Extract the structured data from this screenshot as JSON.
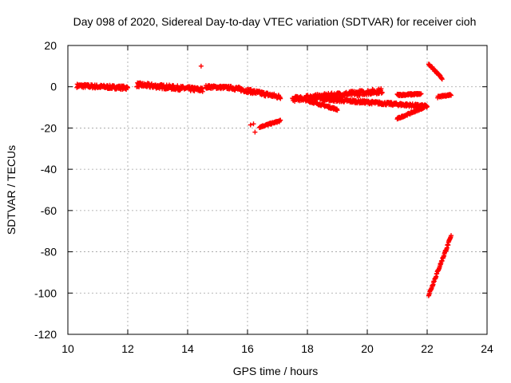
{
  "chart_data": {
    "type": "scatter",
    "title": "Day 098 of 2020, Sidereal Day-to-day VTEC variation (SDTVAR) for receiver cioh",
    "xlabel": "GPS time / hours",
    "ylabel": "SDTVAR / TECUs",
    "xlim": [
      10,
      24
    ],
    "ylim": [
      -120,
      20
    ],
    "xticks": [
      10,
      12,
      14,
      16,
      18,
      20,
      22,
      24
    ],
    "yticks": [
      20,
      0,
      -20,
      -40,
      -60,
      -80,
      -100,
      -120
    ],
    "xtick_labels": [
      "10",
      "12",
      "14",
      "16",
      "18",
      "20",
      "22",
      "24"
    ],
    "ytick_labels": [
      "20",
      "0",
      "-20",
      "-40",
      "-60",
      "-80",
      "-100",
      "-120"
    ],
    "grid": true,
    "marker": "+",
    "color": "#ff0000",
    "segments": [
      {
        "x_start": 10.3,
        "x_end": 12.0,
        "y_start": 0.5,
        "y_end": -0.5,
        "spread": 1.8
      },
      {
        "x_start": 12.3,
        "x_end": 14.5,
        "y_start": 1.0,
        "y_end": -1.5,
        "spread": 2.2
      },
      {
        "x_start": 14.6,
        "x_end": 15.5,
        "y_start": 0.0,
        "y_end": -0.5,
        "spread": 1.5
      },
      {
        "x_start": 15.5,
        "x_end": 17.1,
        "y_start": -0.5,
        "y_end": -5.0,
        "spread": 2.0
      },
      {
        "x_start": 16.4,
        "x_end": 17.1,
        "y_start": -19.5,
        "y_end": -16.5,
        "spread": 0.8
      },
      {
        "x_start": 17.5,
        "x_end": 20.5,
        "y_start": -6.0,
        "y_end": -2.0,
        "spread": 2.5
      },
      {
        "x_start": 17.6,
        "x_end": 19.0,
        "y_start": -5.0,
        "y_end": -11.0,
        "spread": 1.0
      },
      {
        "x_start": 18.5,
        "x_end": 22.0,
        "y_start": -6.0,
        "y_end": -9.5,
        "spread": 1.5
      },
      {
        "x_start": 21.0,
        "x_end": 21.8,
        "y_start": -4.0,
        "y_end": -3.5,
        "spread": 1.0
      },
      {
        "x_start": 21.0,
        "x_end": 21.9,
        "y_start": -15.5,
        "y_end": -10.0,
        "spread": 0.8
      },
      {
        "x_start": 22.05,
        "x_end": 22.5,
        "y_start": 11.0,
        "y_end": 4.0,
        "spread": 0.8
      },
      {
        "x_start": 22.35,
        "x_end": 22.8,
        "y_start": -5.0,
        "y_end": -3.8,
        "spread": 0.8
      },
      {
        "x_start": 22.05,
        "x_end": 22.8,
        "y_start": -101.0,
        "y_end": -72.5,
        "spread": 1.2
      }
    ],
    "points": [
      {
        "x": 14.45,
        "y": 10
      },
      {
        "x": 16.1,
        "y": -18.5
      },
      {
        "x": 16.2,
        "y": -18
      },
      {
        "x": 16.25,
        "y": -22
      }
    ]
  }
}
